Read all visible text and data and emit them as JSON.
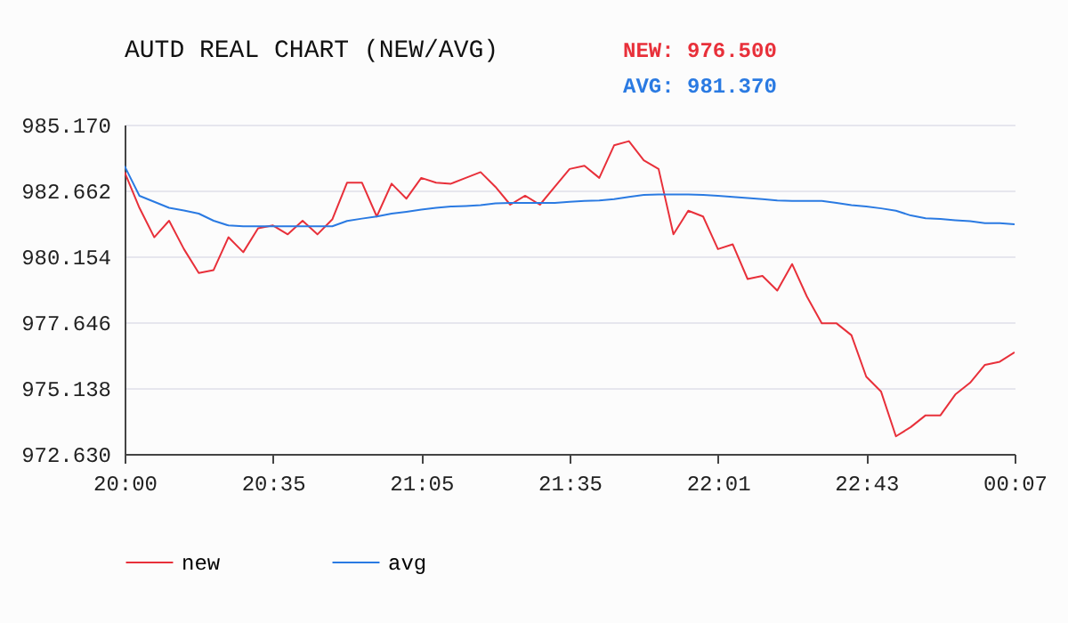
{
  "chart_data": {
    "type": "line",
    "title": "AUTD REAL CHART (NEW/AVG)",
    "annotations": [
      "NEW: 976.500",
      "AVG: 981.370"
    ],
    "categories": [
      "20:00",
      null,
      null,
      null,
      null,
      null,
      null,
      null,
      null,
      null,
      "20:35",
      null,
      null,
      null,
      null,
      null,
      null,
      null,
      null,
      null,
      "21:05",
      null,
      null,
      null,
      null,
      null,
      null,
      null,
      null,
      null,
      "21:35",
      null,
      null,
      null,
      null,
      null,
      null,
      null,
      null,
      null,
      "22:01",
      null,
      null,
      null,
      null,
      null,
      null,
      null,
      null,
      null,
      "22:43",
      null,
      null,
      null,
      null,
      null,
      null,
      null,
      null,
      null,
      "00:07"
    ],
    "series": [
      {
        "name": "new",
        "color": "#e8303a",
        "values": [
          983.36,
          982.0,
          980.88,
          981.51,
          980.43,
          979.52,
          979.63,
          980.88,
          980.31,
          981.22,
          981.33,
          980.99,
          981.51,
          980.99,
          981.56,
          982.96,
          982.96,
          981.67,
          982.92,
          982.35,
          983.14,
          982.96,
          982.92,
          983.14,
          983.36,
          982.8,
          982.12,
          982.46,
          982.12,
          982.8,
          983.48,
          983.6,
          983.14,
          984.38,
          984.54,
          983.81,
          983.48,
          980.99,
          981.89,
          981.67,
          980.43,
          980.61,
          979.29,
          979.41,
          978.85,
          979.86,
          978.62,
          977.6,
          977.6,
          977.15,
          975.57,
          975.0,
          973.3,
          973.65,
          974.1,
          974.1,
          974.89,
          975.34,
          976.02,
          976.14,
          976.5
        ]
      },
      {
        "name": "avg",
        "color": "#2a7ae2",
        "values": [
          983.59,
          982.46,
          982.23,
          982.0,
          981.9,
          981.78,
          981.51,
          981.33,
          981.3,
          981.3,
          981.3,
          981.3,
          981.3,
          981.3,
          981.3,
          981.5,
          981.59,
          981.67,
          981.78,
          981.85,
          981.93,
          982.0,
          982.05,
          982.07,
          982.1,
          982.17,
          982.19,
          982.19,
          982.19,
          982.19,
          982.23,
          982.26,
          982.28,
          982.33,
          982.42,
          982.49,
          982.51,
          982.51,
          982.51,
          982.49,
          982.46,
          982.42,
          982.37,
          982.33,
          982.28,
          982.26,
          982.26,
          982.26,
          982.19,
          982.1,
          982.05,
          981.98,
          981.89,
          981.71,
          981.6,
          981.58,
          981.53,
          981.49,
          981.42,
          981.42,
          981.37
        ]
      }
    ],
    "ylim": [
      972.63,
      985.17
    ],
    "yticks": [
      {
        "value": 972.63,
        "label": "972.630"
      },
      {
        "value": 975.138,
        "label": "975.138"
      },
      {
        "value": 977.646,
        "label": "977.646"
      },
      {
        "value": 980.154,
        "label": "980.154"
      },
      {
        "value": 982.662,
        "label": "982.662"
      },
      {
        "value": 985.17,
        "label": "985.170"
      }
    ],
    "grid": "y",
    "legend": "bottom",
    "marker": "none",
    "line_style": "solid"
  }
}
